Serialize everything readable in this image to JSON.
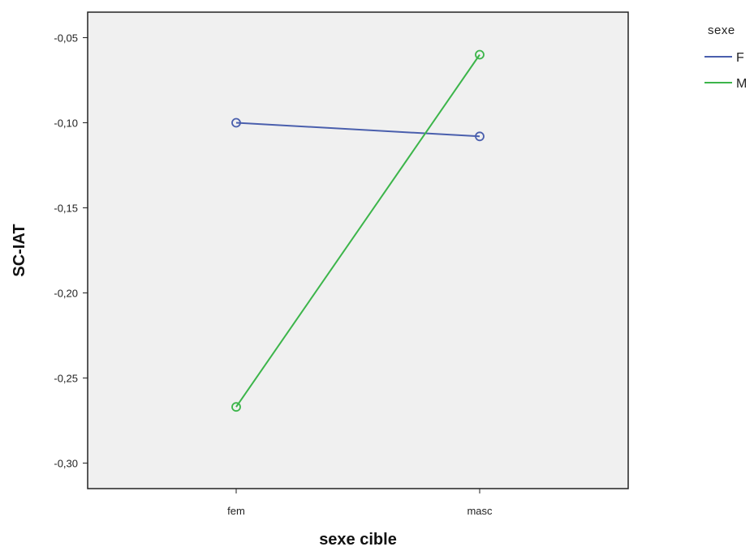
{
  "chart_data": {
    "type": "line",
    "title": "",
    "xlabel": "sexe cible",
    "ylabel": "SC-IAT",
    "categories": [
      "fem",
      "masc"
    ],
    "ylim": [
      -0.315,
      -0.035
    ],
    "yticks": [
      -0.05,
      -0.1,
      -0.15,
      -0.2,
      -0.25,
      -0.3
    ],
    "ytick_labels": [
      "-0,05",
      "-0,10",
      "-0,15",
      "-0,20",
      "-0,25",
      "-0,30"
    ],
    "grid": false,
    "legend": {
      "title": "sexe",
      "placement": "top-right-outside"
    },
    "series": [
      {
        "name": "F",
        "values": [
          -0.1,
          -0.108
        ],
        "color": "#4a5fad"
      },
      {
        "name": "M",
        "values": [
          -0.267,
          -0.06
        ],
        "color": "#3cb54a"
      }
    ],
    "colors": {
      "plot_background": "#f0f0f0",
      "frame": "#222222"
    }
  }
}
